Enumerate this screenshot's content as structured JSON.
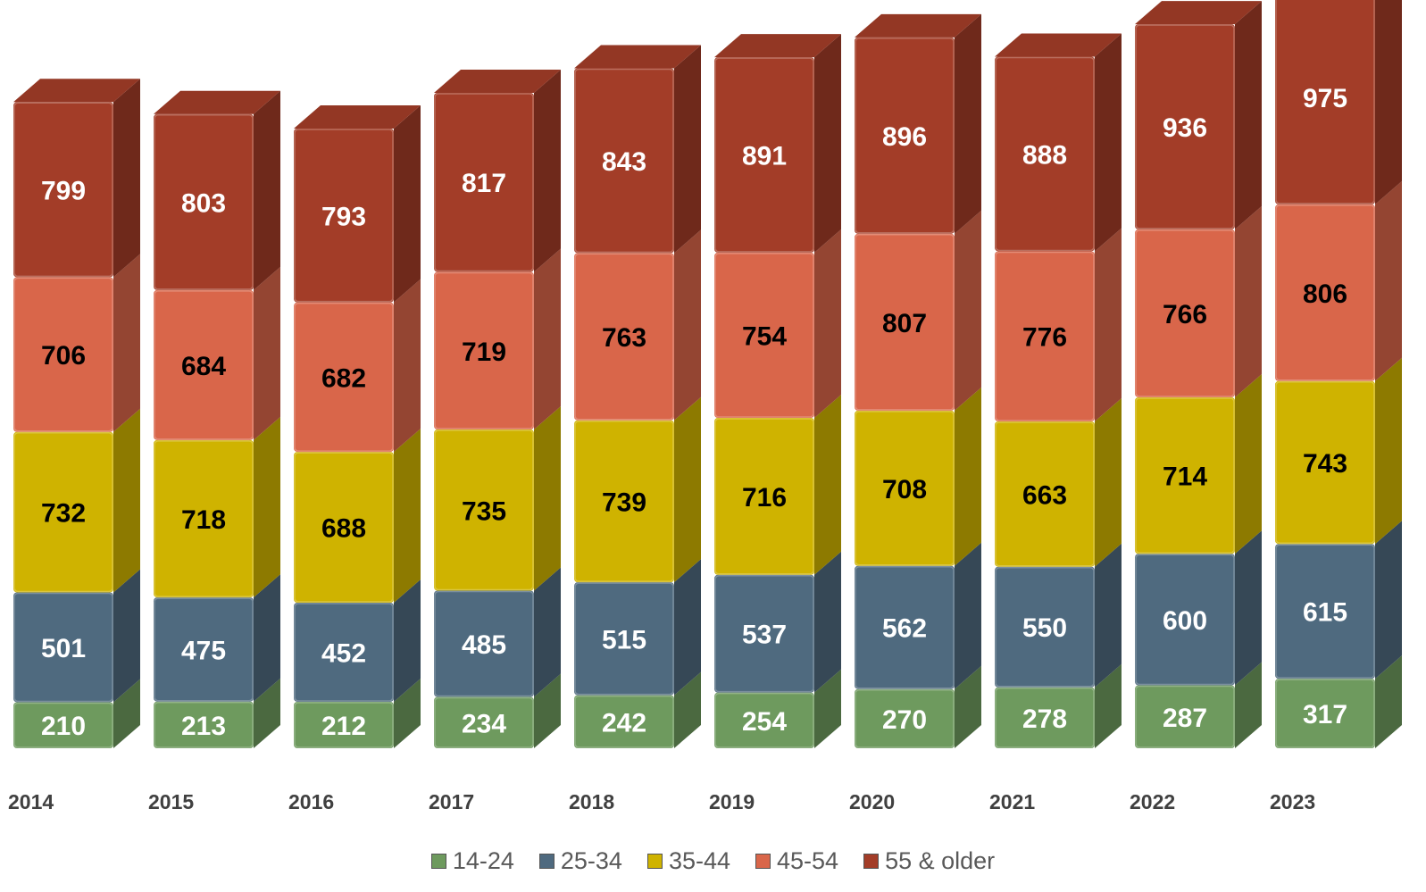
{
  "chart_data": {
    "type": "bar",
    "stacked": true,
    "three_d": true,
    "categories": [
      "2014",
      "2015",
      "2016",
      "2017",
      "2018",
      "2019",
      "2020",
      "2021",
      "2022",
      "2023"
    ],
    "series": [
      {
        "name": "14-24",
        "color": "#6e9a5e",
        "values": [
          210,
          213,
          212,
          234,
          242,
          254,
          270,
          278,
          287,
          317
        ]
      },
      {
        "name": "25-34",
        "color": "#4f6a7f",
        "values": [
          501,
          475,
          452,
          485,
          515,
          537,
          562,
          550,
          600,
          615
        ]
      },
      {
        "name": "35-44",
        "color": "#cfb300",
        "values": [
          732,
          718,
          688,
          735,
          739,
          716,
          708,
          663,
          714,
          743
        ]
      },
      {
        "name": "45-54",
        "color": "#d9664a",
        "values": [
          706,
          684,
          682,
          719,
          763,
          754,
          807,
          776,
          766,
          806
        ]
      },
      {
        "name": "55 & older",
        "color": "#a33d28",
        "values": [
          799,
          803,
          793,
          817,
          843,
          891,
          896,
          888,
          936,
          975
        ]
      }
    ],
    "label_colors": [
      "#ffffff",
      "#ffffff",
      "#000000",
      "#000000",
      "#ffffff"
    ],
    "title": "",
    "xlabel": "",
    "ylabel": "",
    "legend_position": "bottom",
    "grid": false
  }
}
